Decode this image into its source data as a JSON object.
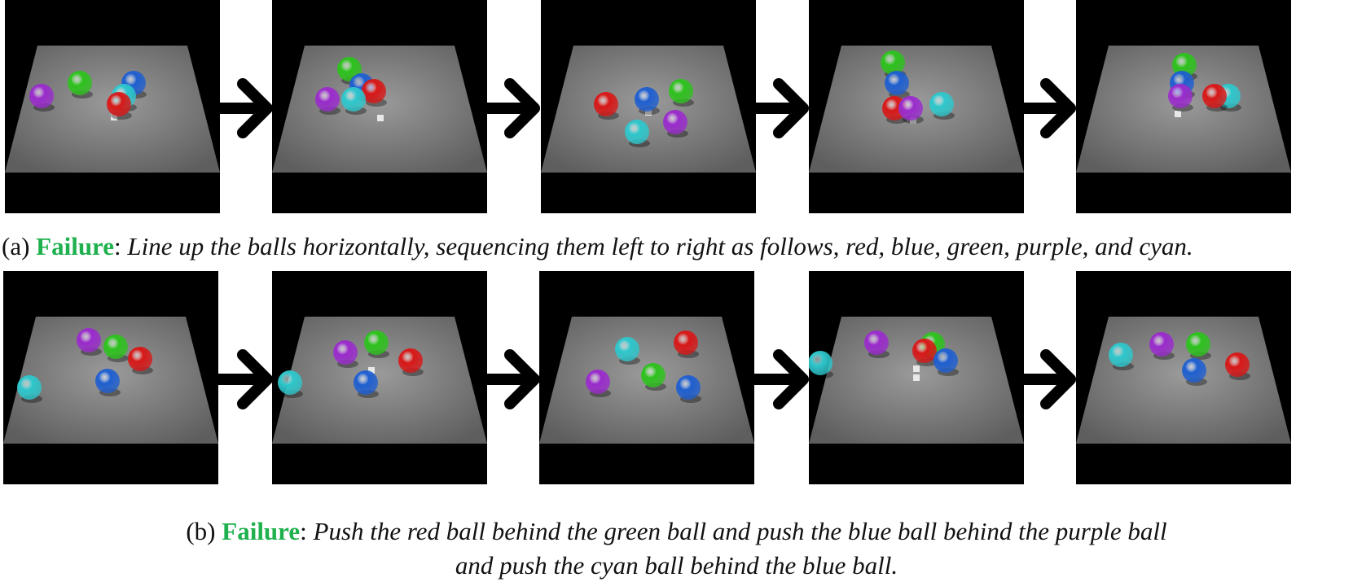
{
  "colors": {
    "red": "#d81818",
    "blue": "#1f5fd0",
    "green": "#2ec21e",
    "purple": "#9a2ccc",
    "cyan": "#2ec7cc",
    "failure_tag": "#1fb14d"
  },
  "rows": [
    {
      "id": "a",
      "caption": {
        "prefix": "(a) ",
        "tag": "Failure",
        "separator": ": ",
        "instruction": "Line up the balls horizontally, sequencing them left to right as follows, red, blue, green, purple, and cyan."
      },
      "frames": [
        {
          "balls": [
            {
              "color": "purple",
              "x": 45,
              "y": 118
            },
            {
              "color": "green",
              "x": 92,
              "y": 102
            },
            {
              "color": "blue",
              "x": 158,
              "y": 102
            },
            {
              "color": "cyan",
              "x": 146,
              "y": 118
            },
            {
              "color": "red",
              "x": 140,
              "y": 128
            }
          ],
          "markers": [
            {
              "x": 134,
              "y": 144
            }
          ]
        },
        {
          "balls": [
            {
              "color": "green",
              "x": 95,
              "y": 85
            },
            {
              "color": "blue",
              "x": 110,
              "y": 105
            },
            {
              "color": "red",
              "x": 125,
              "y": 112
            },
            {
              "color": "purple",
              "x": 68,
              "y": 122
            },
            {
              "color": "cyan",
              "x": 100,
              "y": 122
            }
          ],
          "markers": [
            {
              "x": 133,
              "y": 145
            }
          ]
        },
        {
          "balls": [
            {
              "color": "red",
              "x": 80,
              "y": 128
            },
            {
              "color": "blue",
              "x": 130,
              "y": 122
            },
            {
              "color": "green",
              "x": 172,
              "y": 112
            },
            {
              "color": "purple",
              "x": 165,
              "y": 150
            },
            {
              "color": "cyan",
              "x": 118,
              "y": 162
            }
          ],
          "markers": [
            {
              "x": 132,
              "y": 138
            }
          ]
        },
        {
          "balls": [
            {
              "color": "green",
              "x": 103,
              "y": 77
            },
            {
              "color": "blue",
              "x": 108,
              "y": 102
            },
            {
              "color": "red",
              "x": 105,
              "y": 133
            },
            {
              "color": "purple",
              "x": 125,
              "y": 133
            },
            {
              "color": "cyan",
              "x": 163,
              "y": 128
            }
          ],
          "markers": [
            {
              "x": 128,
              "y": 148
            }
          ]
        },
        {
          "balls": [
            {
              "color": "green",
              "x": 133,
              "y": 80
            },
            {
              "color": "blue",
              "x": 130,
              "y": 102
            },
            {
              "color": "purple",
              "x": 128,
              "y": 118
            },
            {
              "color": "cyan",
              "x": 187,
              "y": 118
            },
            {
              "color": "red",
              "x": 170,
              "y": 118
            }
          ],
          "markers": [
            {
              "x": 125,
              "y": 140
            }
          ]
        }
      ]
    },
    {
      "id": "b",
      "caption": {
        "prefix": "(b) ",
        "tag": "Failure",
        "separator": ": ",
        "instruction_line1": "Push the red ball behind the green ball and push the blue ball behind the purple ball",
        "instruction_line2": "and push the cyan ball behind the blue ball."
      },
      "frames": [
        {
          "balls": [
            {
              "color": "purple",
              "x": 105,
              "y": 85
            },
            {
              "color": "green",
              "x": 138,
              "y": 93
            },
            {
              "color": "red",
              "x": 168,
              "y": 108
            },
            {
              "color": "blue",
              "x": 128,
              "y": 135
            },
            {
              "color": "cyan",
              "x": 32,
              "y": 143
            }
          ],
          "markers": []
        },
        {
          "balls": [
            {
              "color": "purple",
              "x": 90,
              "y": 100
            },
            {
              "color": "green",
              "x": 128,
              "y": 88
            },
            {
              "color": "red",
              "x": 170,
              "y": 110
            },
            {
              "color": "blue",
              "x": 115,
              "y": 137
            },
            {
              "color": "cyan",
              "x": 22,
              "y": 137
            }
          ],
          "markers": [
            {
              "x": 122,
              "y": 122
            }
          ]
        },
        {
          "balls": [
            {
              "color": "cyan",
              "x": 108,
              "y": 96
            },
            {
              "color": "red",
              "x": 180,
              "y": 88
            },
            {
              "color": "green",
              "x": 140,
              "y": 128
            },
            {
              "color": "purple",
              "x": 72,
              "y": 136
            },
            {
              "color": "blue",
              "x": 183,
              "y": 143
            }
          ],
          "markers": []
        },
        {
          "balls": [
            {
              "color": "purple",
              "x": 83,
              "y": 88
            },
            {
              "color": "green",
              "x": 152,
              "y": 90
            },
            {
              "color": "red",
              "x": 142,
              "y": 98
            },
            {
              "color": "blue",
              "x": 168,
              "y": 110
            },
            {
              "color": "cyan",
              "x": 14,
              "y": 113
            }
          ],
          "markers": [
            {
              "x": 132,
              "y": 120
            },
            {
              "x": 132,
              "y": 131
            }
          ]
        },
        {
          "balls": [
            {
              "color": "cyan",
              "x": 55,
              "y": 103
            },
            {
              "color": "purple",
              "x": 105,
              "y": 90
            },
            {
              "color": "green",
              "x": 150,
              "y": 90
            },
            {
              "color": "blue",
              "x": 145,
              "y": 122
            },
            {
              "color": "red",
              "x": 198,
              "y": 115
            }
          ],
          "markers": []
        }
      ]
    }
  ]
}
